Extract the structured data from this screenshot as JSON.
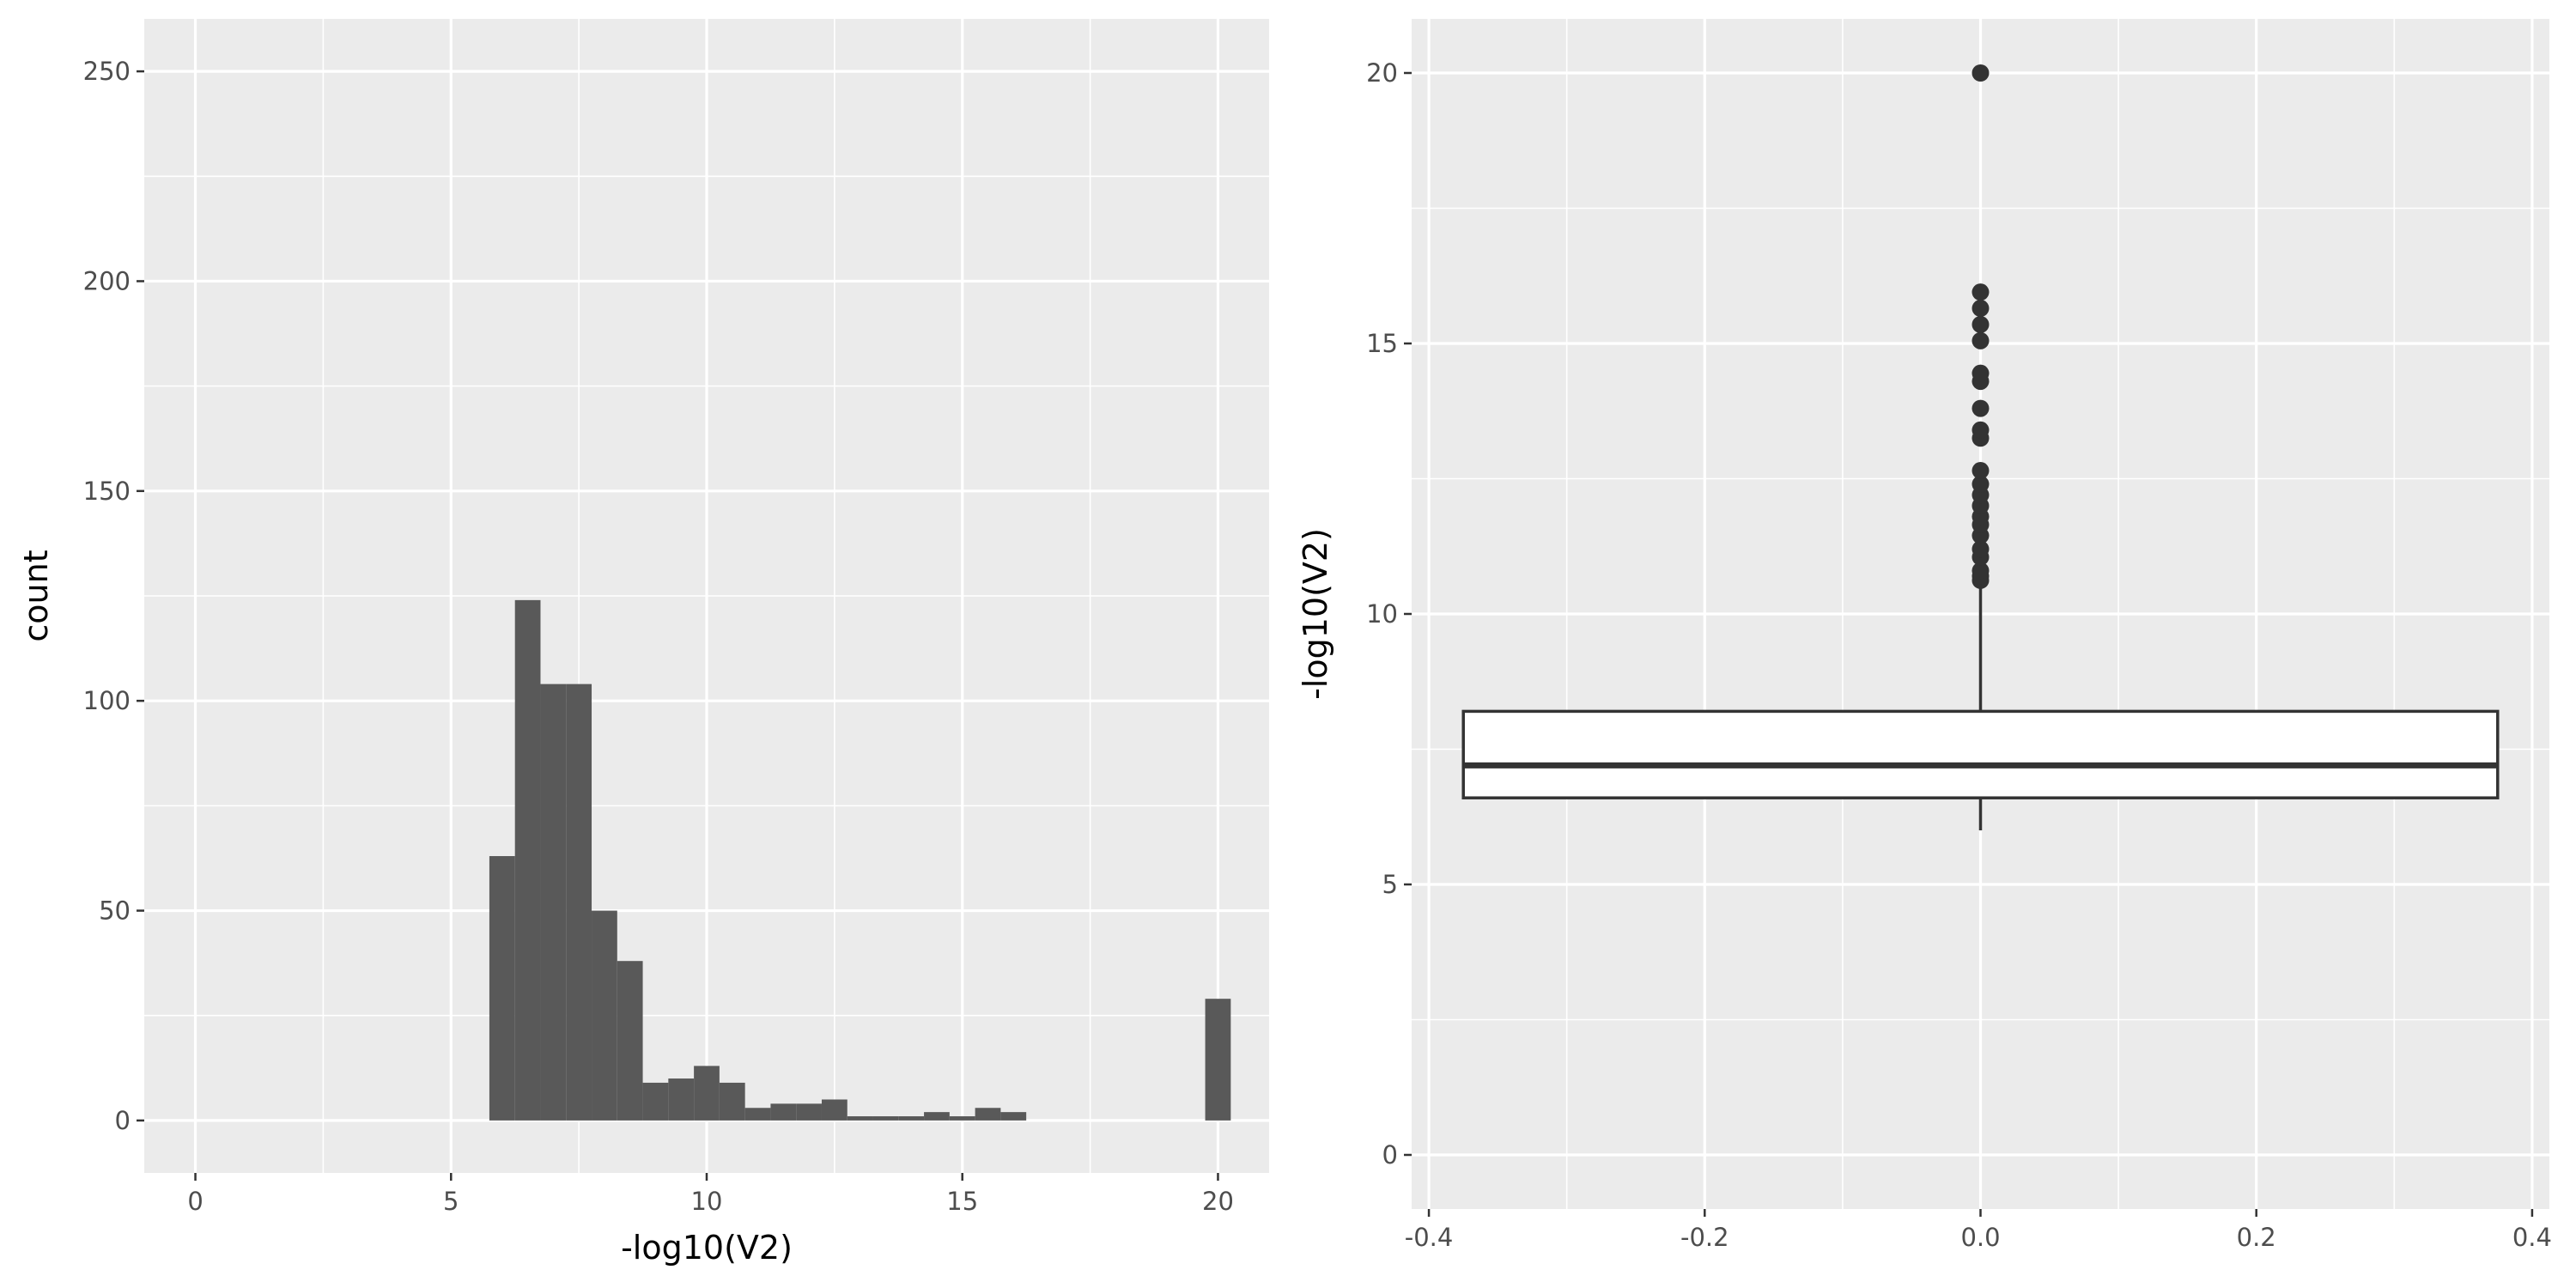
{
  "colors": {
    "panel_background": "#EBEBEB",
    "grid": "#FFFFFF",
    "bar_fill": "#595959",
    "tick": "#333333",
    "tick_label": "#4D4D4D",
    "box_fill": "#FFFFFF",
    "box_line": "#333333",
    "outlier": "#333333"
  },
  "chart_data": [
    {
      "type": "histogram",
      "xlabel": "-log10(V2)",
      "ylabel": "count",
      "xlim": [
        -1,
        21
      ],
      "ylim": [
        -12.5,
        262.5
      ],
      "xticks": [
        0,
        5,
        10,
        15,
        20
      ],
      "yticks": [
        0,
        50,
        100,
        150,
        200,
        250
      ],
      "grid": true,
      "bin_width": 0.5,
      "bins": [
        {
          "x0": 5.75,
          "x1": 6.25,
          "count": 63
        },
        {
          "x0": 6.25,
          "x1": 6.75,
          "count": 124
        },
        {
          "x0": 6.75,
          "x1": 7.25,
          "count": 104
        },
        {
          "x0": 7.25,
          "x1": 7.75,
          "count": 104
        },
        {
          "x0": 7.75,
          "x1": 8.25,
          "count": 50
        },
        {
          "x0": 8.25,
          "x1": 8.75,
          "count": 38
        },
        {
          "x0": 8.75,
          "x1": 9.25,
          "count": 9
        },
        {
          "x0": 9.25,
          "x1": 9.75,
          "count": 10
        },
        {
          "x0": 9.75,
          "x1": 10.25,
          "count": 13
        },
        {
          "x0": 10.25,
          "x1": 10.75,
          "count": 9
        },
        {
          "x0": 10.75,
          "x1": 11.25,
          "count": 3
        },
        {
          "x0": 11.25,
          "x1": 11.75,
          "count": 4
        },
        {
          "x0": 11.75,
          "x1": 12.25,
          "count": 4
        },
        {
          "x0": 12.25,
          "x1": 12.75,
          "count": 5
        },
        {
          "x0": 12.75,
          "x1": 13.25,
          "count": 1
        },
        {
          "x0": 13.25,
          "x1": 13.75,
          "count": 1
        },
        {
          "x0": 13.75,
          "x1": 14.25,
          "count": 1
        },
        {
          "x0": 14.25,
          "x1": 14.75,
          "count": 2
        },
        {
          "x0": 14.75,
          "x1": 15.25,
          "count": 1
        },
        {
          "x0": 15.25,
          "x1": 15.75,
          "count": 3
        },
        {
          "x0": 15.75,
          "x1": 16.25,
          "count": 2
        },
        {
          "x0": 19.75,
          "x1": 20.25,
          "count": 29
        }
      ]
    },
    {
      "type": "boxplot",
      "xlabel": "",
      "ylabel": "-log10(V2)",
      "xlim": [
        -0.4125,
        0.4125
      ],
      "ylim": [
        -1,
        21
      ],
      "xticks": [
        -0.4,
        -0.2,
        0.0,
        0.2,
        0.4
      ],
      "yticks": [
        0,
        5,
        10,
        15,
        20
      ],
      "grid": true,
      "box": {
        "x_center": 0,
        "x_min": -0.375,
        "x_max": 0.375,
        "whisker_low": 6.0,
        "q1": 6.6,
        "median": 7.2,
        "q3": 8.2,
        "whisker_high": 10.6,
        "outliers": [
          10.62,
          10.7,
          10.8,
          11.05,
          11.2,
          11.45,
          11.65,
          11.8,
          12.0,
          12.2,
          12.4,
          12.65,
          13.25,
          13.4,
          13.8,
          14.3,
          14.45,
          15.05,
          15.35,
          15.65,
          15.95,
          20.0
        ]
      }
    }
  ]
}
